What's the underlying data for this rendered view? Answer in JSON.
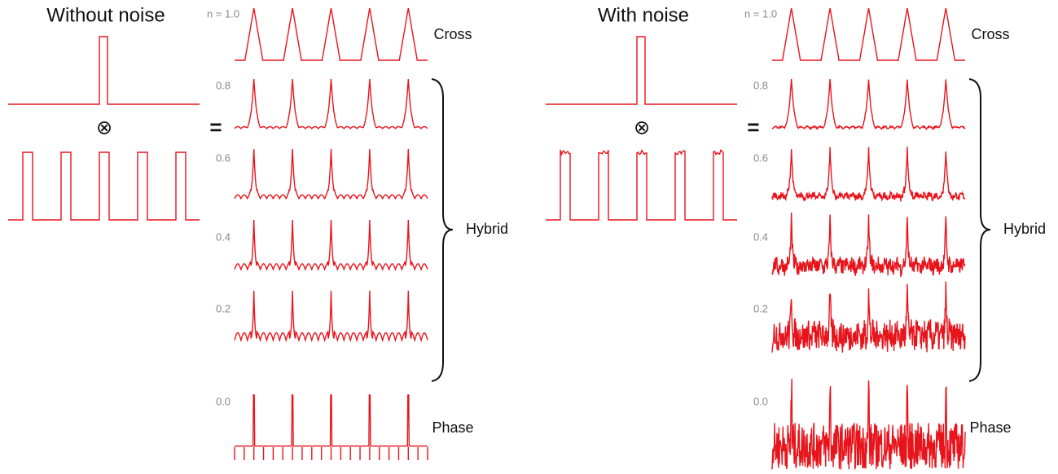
{
  "panels": [
    {
      "title": "Without noise",
      "operator": "⊗",
      "equals": "=",
      "rows": [
        "n = 1.0",
        "0.8",
        "0.6",
        "0.4",
        "0.2",
        "0.0"
      ],
      "cross": "Cross",
      "hybrid": "Hybrid",
      "phase": "Phase"
    },
    {
      "title": "With noise",
      "operator": "⊗",
      "equals": "=",
      "rows": [
        "n = 1.0",
        "0.8",
        "0.6",
        "0.4",
        "0.2",
        "0.0"
      ],
      "cross": "Cross",
      "hybrid": "Hybrid",
      "phase": "Phase"
    }
  ]
}
